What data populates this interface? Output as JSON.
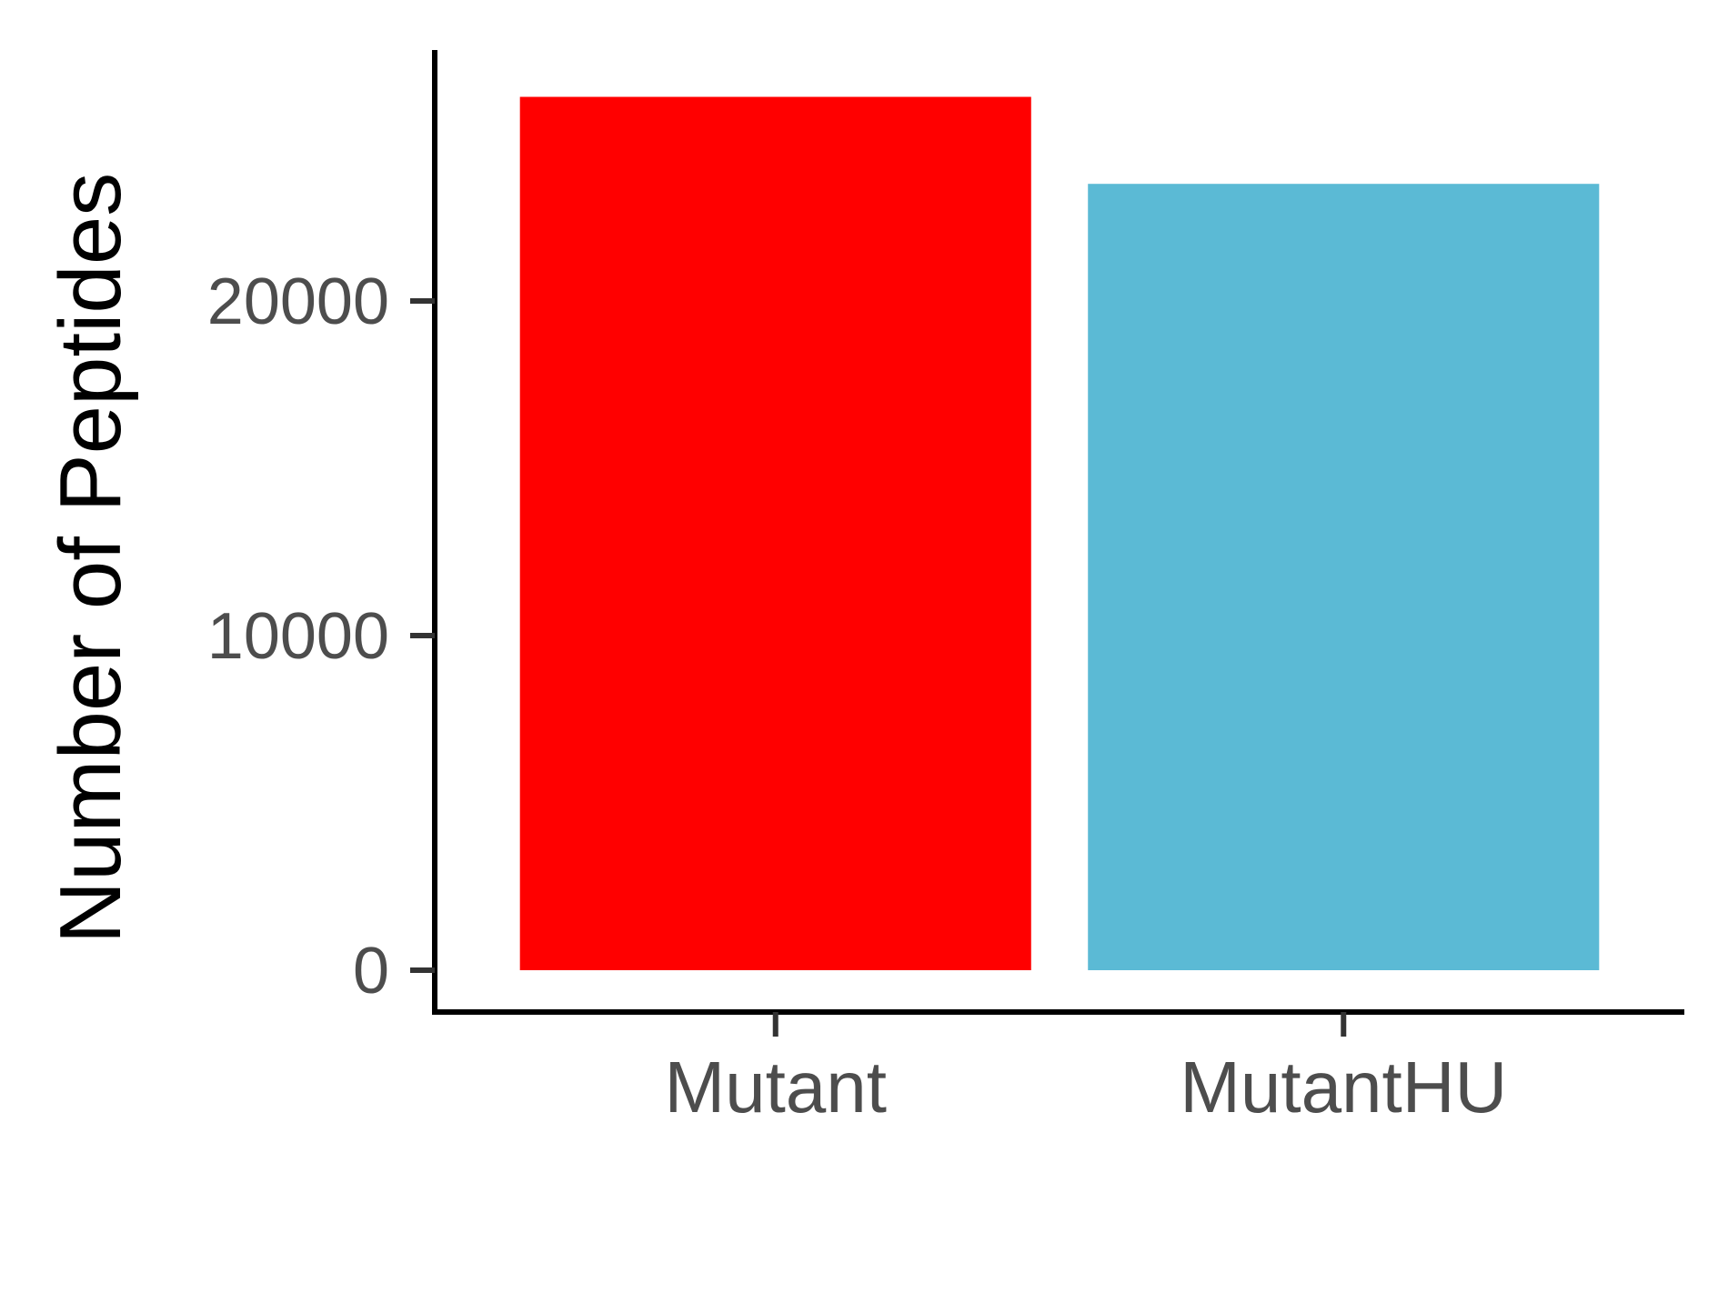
{
  "chart_data": {
    "type": "bar",
    "categories": [
      "Mutant",
      "MutantHU"
    ],
    "values": [
      26100,
      23500
    ],
    "colors": [
      "#ff0000",
      "#5bbad5"
    ],
    "xlabel": "",
    "ylabel": "Number of Peptides",
    "yticks": [
      0,
      10000,
      20000
    ],
    "ylim": [
      -1250,
      27500
    ],
    "grid": false,
    "legend": "none"
  }
}
